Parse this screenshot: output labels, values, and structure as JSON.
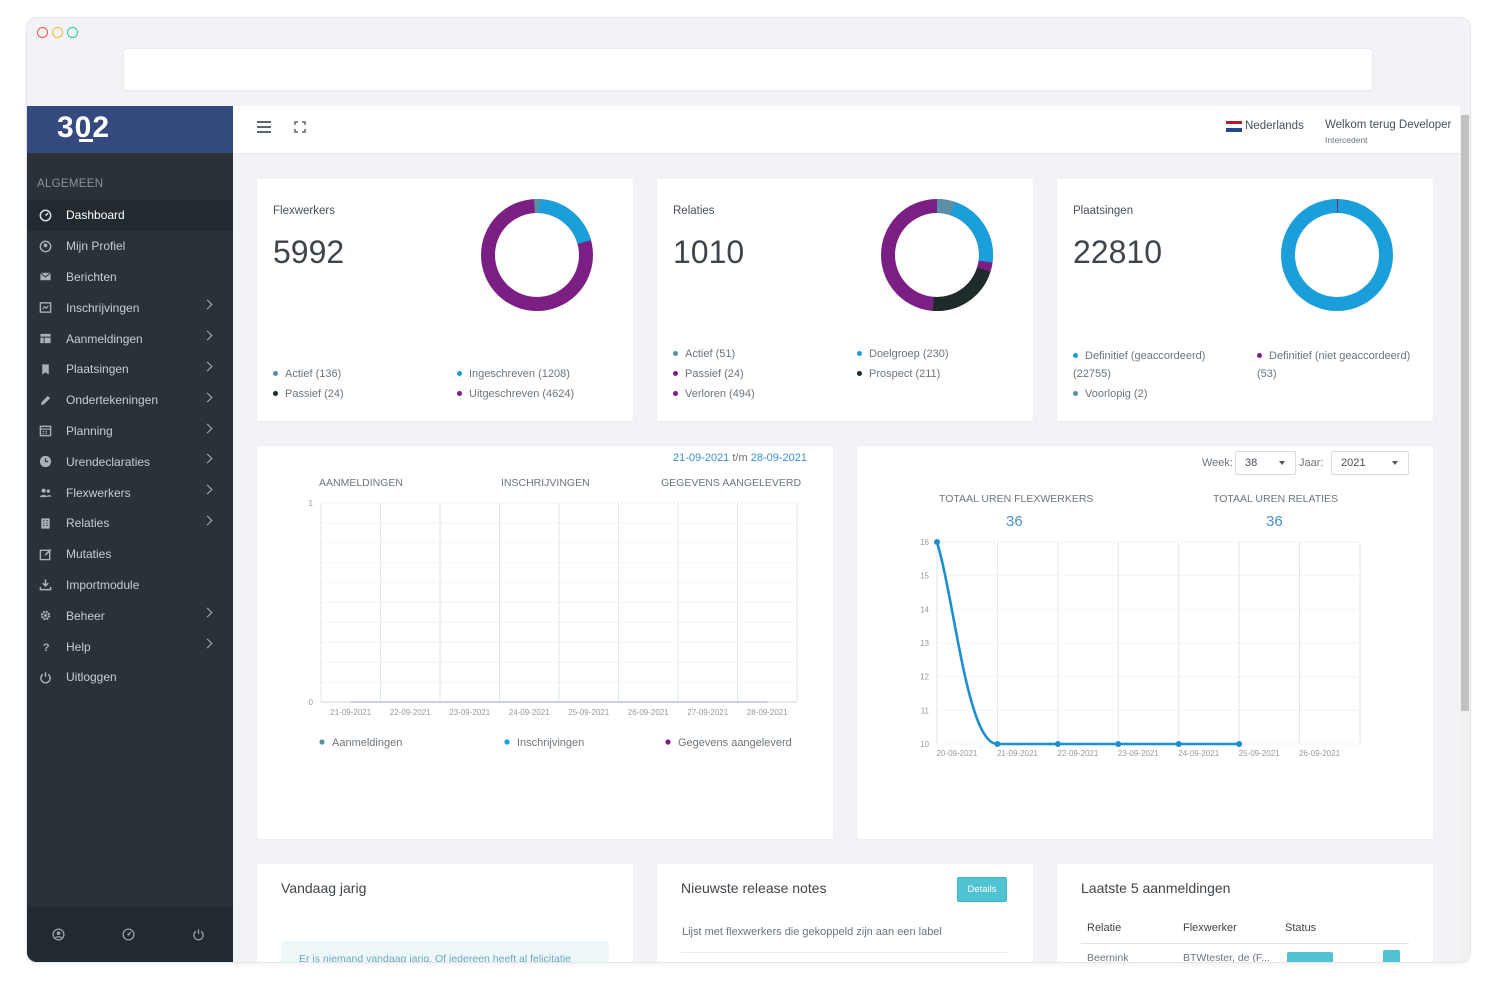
{
  "sidebar": {
    "logo": "302",
    "section": "ALGEMEEN",
    "items": [
      {
        "label": "Dashboard",
        "icon": "dashboard-icon",
        "active": true,
        "chevron": false
      },
      {
        "label": "Mijn Profiel",
        "icon": "profile-icon",
        "chevron": false
      },
      {
        "label": "Berichten",
        "icon": "envelope-icon",
        "chevron": false
      },
      {
        "label": "Inschrijvingen",
        "icon": "form-icon",
        "chevron": true
      },
      {
        "label": "Aanmeldingen",
        "icon": "table-icon",
        "chevron": true
      },
      {
        "label": "Plaatsingen",
        "icon": "bookmark-icon",
        "chevron": true
      },
      {
        "label": "Ondertekeningen",
        "icon": "pen-icon",
        "chevron": true
      },
      {
        "label": "Planning",
        "icon": "calendar-icon",
        "chevron": true
      },
      {
        "label": "Urendeclaraties",
        "icon": "clock-icon",
        "chevron": true
      },
      {
        "label": "Flexwerkers",
        "icon": "users-icon",
        "chevron": true
      },
      {
        "label": "Relaties",
        "icon": "building-icon",
        "chevron": true
      },
      {
        "label": "Mutaties",
        "icon": "edit-icon",
        "chevron": false
      },
      {
        "label": "Importmodule",
        "icon": "download-icon",
        "chevron": false
      },
      {
        "label": "Beheer",
        "icon": "gear-icon",
        "chevron": true
      },
      {
        "label": "Help",
        "icon": "question-icon",
        "chevron": true
      },
      {
        "label": "Uitloggen",
        "icon": "power-icon",
        "chevron": false
      }
    ]
  },
  "header": {
    "language": "Nederlands",
    "welcome": "Welkom terug Developer",
    "role": "Intercedent"
  },
  "stats": [
    {
      "label": "Flexwerkers",
      "value": "5992",
      "segments": [
        {
          "value": 136,
          "color": "#1b9fdb"
        },
        {
          "value": 24,
          "color": "#1e2b2b"
        },
        {
          "value": 1208,
          "color": "#1b9fdb"
        },
        {
          "value": 4624,
          "color": "#7b1f84"
        }
      ],
      "legend": [
        {
          "text": "Actief (136)",
          "color": "#5b8fa8"
        },
        {
          "text": "Ingeschreven (1208)",
          "color": "#1b9fdb"
        },
        {
          "text": "Passief (24)",
          "color": "#1e2b2b"
        },
        {
          "text": "Uitgeschreven (4624)",
          "color": "#7b1f84"
        }
      ]
    },
    {
      "label": "Relaties",
      "value": "1010",
      "legend": [
        {
          "text": "Actief (51)",
          "color": "#5b8fa8"
        },
        {
          "text": "Doelgroep (230)",
          "color": "#1b9fdb"
        },
        {
          "text": "Passief (24)",
          "color": "#7b1f84"
        },
        {
          "text": "Prospect (211)",
          "color": "#1e2b2b"
        },
        {
          "text": "Verloren (494)",
          "color": "#7b1f84"
        }
      ]
    },
    {
      "label": "Plaatsingen",
      "value": "22810",
      "legend": [
        {
          "text": "Definitief (geaccordeerd) (22755)",
          "color": "#1b9fdb"
        },
        {
          "text": "Definitief (niet geaccordeerd) (53)",
          "color": "#7b1f84"
        },
        {
          "text": "Voorlopig (2)",
          "color": "#5b8fa8"
        }
      ]
    }
  ],
  "registrations_chart": {
    "date_from": "21-09-2021",
    "date_sep": "t/m",
    "date_to": "28-09-2021",
    "headers": [
      "AANMELDINGEN",
      "INSCHRIJVINGEN",
      "GEGEVENS AANGELEVERD"
    ],
    "chart_data": {
      "type": "line",
      "categories": [
        "21-09-2021",
        "22-09-2021",
        "23-09-2021",
        "24-09-2021",
        "25-09-2021",
        "26-09-2021",
        "27-09-2021",
        "28-09-2021"
      ],
      "ylim": [
        0,
        1
      ],
      "yticks": [
        "1",
        "0"
      ],
      "series": [
        {
          "name": "Aanmeldingen",
          "color": "#5b8fa8",
          "values": [
            0,
            0,
            0,
            0,
            0,
            0,
            0,
            0
          ]
        },
        {
          "name": "Inschrijvingen",
          "color": "#1b9fdb",
          "values": [
            0,
            0,
            0,
            0,
            0,
            0,
            0,
            0
          ]
        },
        {
          "name": "Gegevens aangeleverd",
          "color": "#7b1f84",
          "values": [
            0,
            0,
            0,
            0,
            0,
            0,
            0,
            0
          ]
        }
      ]
    }
  },
  "hours_chart": {
    "week_label": "Week:",
    "week_value": "38",
    "year_label": "Jaar:",
    "year_value": "2021",
    "total_flex_label": "TOTAAL UREN FLEXWERKERS",
    "total_flex_value": "36",
    "total_rel_label": "TOTAAL UREN RELATIES",
    "total_rel_value": "36",
    "chart_data": {
      "type": "line",
      "categories": [
        "20-09-2021",
        "21-09-2021",
        "22-09-2021",
        "23-09-2021",
        "24-09-2021",
        "25-09-2021",
        "26-09-2021"
      ],
      "ylim": [
        10,
        16
      ],
      "yticks": [
        "16",
        "15",
        "14",
        "13",
        "12",
        "11",
        "10"
      ],
      "series": [
        {
          "color": "#1b8fd2",
          "values": [
            16,
            10,
            10,
            10,
            10,
            10,
            null
          ]
        }
      ]
    }
  },
  "bottom": {
    "birthday_title": "Vandaag jarig",
    "birthday_note": "Er is niemand vandaag jarig. Of iedereen heeft al felicitatie",
    "release_title": "Nieuwste release notes",
    "details_button": "Details",
    "release_item": "Lijst met flexwerkers die gekoppeld zijn aan een label",
    "latest_title": "Laatste 5 aanmeldingen",
    "latest_columns": [
      "Relatie",
      "Flexwerker",
      "Status"
    ],
    "latest_row": [
      "Beernink",
      "BTWtester, de (F..."
    ]
  }
}
